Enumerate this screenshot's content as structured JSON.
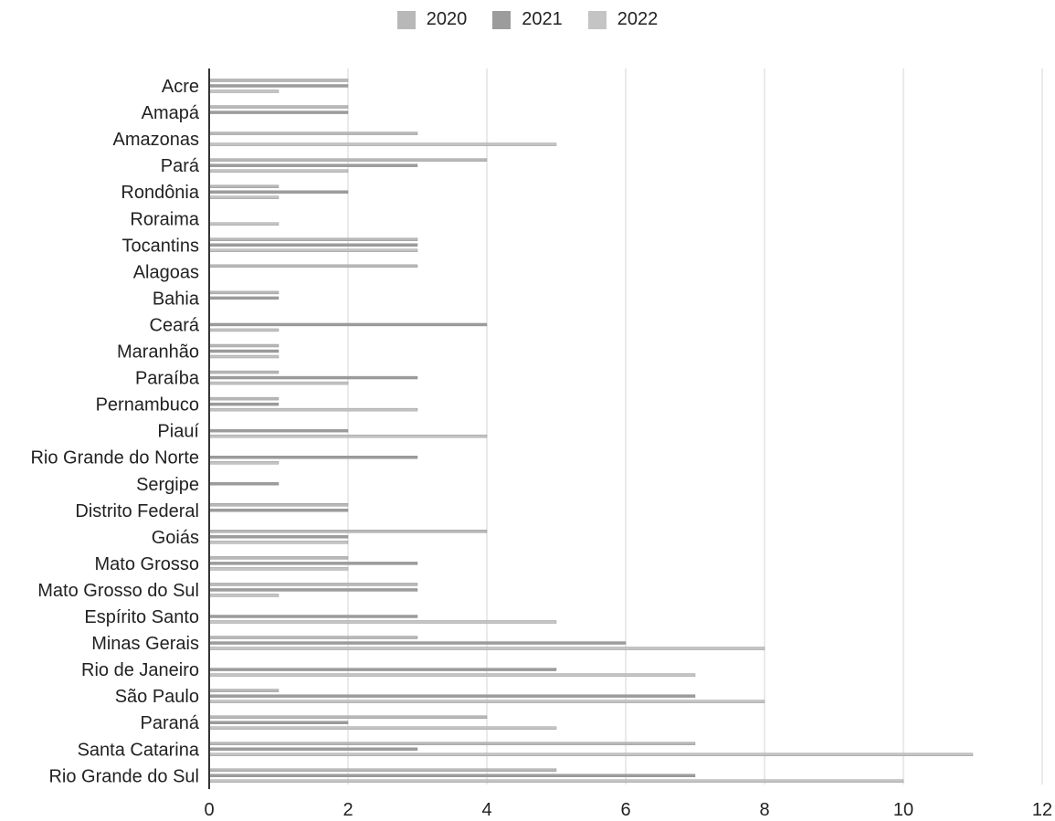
{
  "chart_data": {
    "type": "bar",
    "orientation": "horizontal",
    "categories": [
      "Acre",
      "Amapá",
      "Amazonas",
      "Pará",
      "Rondônia",
      "Roraima",
      "Tocantins",
      "Alagoas",
      "Bahia",
      "Ceará",
      "Maranhão",
      "Paraíba",
      "Pernambuco",
      "Piauí",
      "Rio Grande do Norte",
      "Sergipe",
      "Distrito Federal",
      "Goiás",
      "Mato Grosso",
      "Mato Grosso do Sul",
      "Espírito Santo",
      "Minas Gerais",
      "Rio de Janeiro",
      "São Paulo",
      "Paraná",
      "Santa Catarina",
      "Rio Grande do Sul"
    ],
    "series": [
      {
        "name": "2020",
        "color": "#b8b8b8",
        "values": [
          2,
          2,
          3,
          4,
          1,
          0,
          3,
          3,
          1,
          0,
          1,
          1,
          1,
          0,
          0,
          0,
          2,
          4,
          2,
          3,
          0,
          3,
          0,
          1,
          4,
          7,
          5
        ]
      },
      {
        "name": "2021",
        "color": "#9c9c9c",
        "values": [
          2,
          2,
          0,
          3,
          2,
          0,
          3,
          0,
          1,
          4,
          1,
          3,
          1,
          2,
          3,
          1,
          2,
          2,
          3,
          3,
          3,
          6,
          5,
          7,
          2,
          3,
          7
        ]
      },
      {
        "name": "2022",
        "color": "#c4c4c4",
        "values": [
          1,
          0,
          5,
          2,
          1,
          1,
          3,
          0,
          0,
          1,
          1,
          2,
          3,
          4,
          1,
          0,
          0,
          2,
          2,
          1,
          5,
          8,
          7,
          8,
          5,
          11,
          10
        ]
      }
    ],
    "xlim": [
      0,
      12
    ],
    "xticks": [
      "0",
      "2",
      "4",
      "6",
      "8",
      "10",
      "12"
    ],
    "grid": true,
    "legend_position": "top-center"
  }
}
